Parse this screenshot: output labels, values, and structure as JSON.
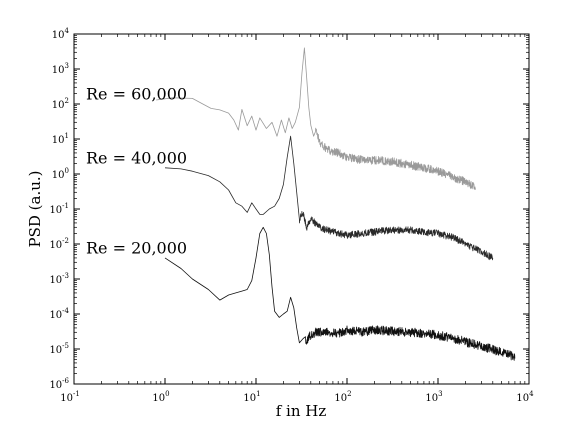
{
  "chart_data": {
    "type": "line",
    "title": "",
    "xlabel": "f in Hz",
    "ylabel": "PSD (a.u.)",
    "xscale": "log",
    "yscale": "log",
    "xlim": [
      0.1,
      10000
    ],
    "ylim": [
      1e-06,
      10000
    ],
    "grid": false,
    "legend": "none",
    "x_ticks": [
      {
        "base": "10",
        "exp": "-1",
        "value": 0.1
      },
      {
        "base": "10",
        "exp": "0",
        "value": 1
      },
      {
        "base": "10",
        "exp": "1",
        "value": 10
      },
      {
        "base": "10",
        "exp": "2",
        "value": 100
      },
      {
        "base": "10",
        "exp": "3",
        "value": 1000
      },
      {
        "base": "10",
        "exp": "4",
        "value": 10000
      }
    ],
    "y_ticks": [
      {
        "base": "10",
        "exp": "-6",
        "value": 1e-06
      },
      {
        "base": "10",
        "exp": "-5",
        "value": 1e-05
      },
      {
        "base": "10",
        "exp": "-4",
        "value": 0.0001
      },
      {
        "base": "10",
        "exp": "-3",
        "value": 0.001
      },
      {
        "base": "10",
        "exp": "-2",
        "value": 0.01
      },
      {
        "base": "10",
        "exp": "-1",
        "value": 0.1
      },
      {
        "base": "10",
        "exp": "0",
        "value": 1
      },
      {
        "base": "10",
        "exp": "1",
        "value": 10
      },
      {
        "base": "10",
        "exp": "2",
        "value": 100
      },
      {
        "base": "10",
        "exp": "3",
        "value": 1000
      },
      {
        "base": "10",
        "exp": "4",
        "value": 10000
      }
    ],
    "annotations": [
      {
        "text": "Re = 60,000",
        "x": 0.8,
        "y": 200
      },
      {
        "text": "Re = 40,000",
        "x": 0.8,
        "y": 3
      },
      {
        "text": "Re = 20,000",
        "x": 0.8,
        "y": 0.008
      }
    ],
    "series": [
      {
        "color": "#9a9a9a",
        "noisy_from_x": 45,
        "noise_decades": 0.12,
        "x": [
          0.8,
          1.2,
          2,
          2.6,
          3.2,
          4,
          5,
          5.7,
          6.4,
          7,
          8,
          9,
          10,
          11,
          13,
          15,
          17,
          19,
          21,
          23,
          25,
          27,
          30,
          32,
          34,
          36,
          38,
          40,
          43,
          46,
          50,
          60,
          80,
          100,
          150,
          200,
          300,
          500,
          700,
          1000,
          1500,
          2000,
          2600
        ],
        "y": [
          130,
          150,
          145,
          100,
          75,
          68,
          55,
          35,
          18,
          70,
          24,
          45,
          18,
          40,
          20,
          30,
          12,
          35,
          15,
          40,
          20,
          30,
          80,
          800,
          4000,
          600,
          80,
          25,
          12,
          18,
          8,
          5,
          4,
          3,
          2.5,
          2.5,
          2.3,
          1.8,
          1.5,
          1.2,
          0.8,
          0.6,
          0.4
        ]
      },
      {
        "color": "#2a2a2a",
        "noisy_from_x": 30,
        "noise_decades": 0.1,
        "x": [
          1,
          1.5,
          2,
          3,
          4,
          5,
          6,
          7,
          8,
          9,
          10,
          11,
          12,
          14,
          16,
          18,
          20,
          22,
          24,
          26,
          28,
          30,
          33,
          36,
          40,
          45,
          50,
          60,
          80,
          100,
          150,
          200,
          300,
          500,
          700,
          1000,
          1500,
          2000,
          3000,
          4000
        ],
        "y": [
          1.5,
          1.4,
          1.2,
          0.9,
          0.6,
          0.35,
          0.15,
          0.12,
          0.08,
          0.15,
          0.1,
          0.07,
          0.07,
          0.1,
          0.12,
          0.2,
          0.5,
          3,
          12,
          2,
          0.3,
          0.05,
          0.08,
          0.03,
          0.05,
          0.04,
          0.03,
          0.025,
          0.02,
          0.018,
          0.02,
          0.022,
          0.025,
          0.025,
          0.022,
          0.02,
          0.015,
          0.01,
          0.006,
          0.004
        ]
      },
      {
        "color": "#111111",
        "noisy_from_x": 35,
        "noise_decades": 0.13,
        "x": [
          1,
          1.5,
          2,
          3,
          4,
          5,
          6,
          7,
          8,
          9,
          10,
          11,
          12,
          13,
          14,
          15,
          16,
          18,
          20,
          22,
          24,
          26,
          28,
          30,
          33,
          36,
          40,
          45,
          50,
          60,
          80,
          100,
          150,
          200,
          300,
          500,
          700,
          1000,
          1500,
          2000,
          3000,
          5000,
          7000
        ],
        "y": [
          0.004,
          0.002,
          0.001,
          0.0005,
          0.00025,
          0.00035,
          0.0004,
          0.00045,
          0.0005,
          0.0009,
          0.004,
          0.02,
          0.03,
          0.02,
          0.005,
          0.0006,
          0.00012,
          8e-05,
          0.0001,
          0.00012,
          0.0003,
          0.00015,
          4e-05,
          1.5e-05,
          2e-05,
          1.8e-05,
          2.5e-05,
          3e-05,
          3e-05,
          3.2e-05,
          2.8e-05,
          3.5e-05,
          3e-05,
          3.5e-05,
          3.2e-05,
          3e-05,
          2.8e-05,
          2.5e-05,
          2e-05,
          1.6e-05,
          1.2e-05,
          8e-06,
          6e-06
        ]
      }
    ]
  }
}
